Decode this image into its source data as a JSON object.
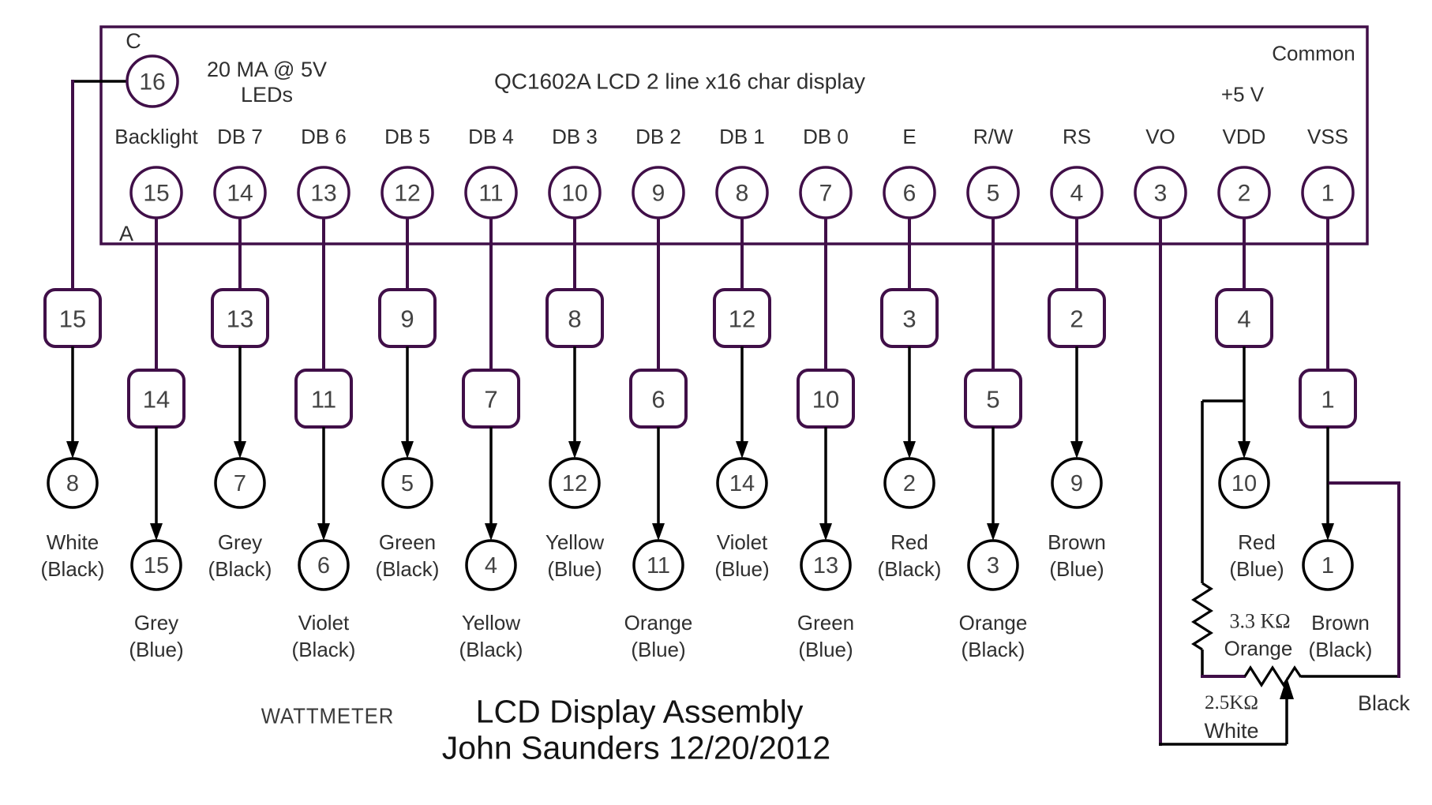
{
  "colors": {
    "wire_purple": "#400f48",
    "wire_black": "#000000",
    "number_text": "#434343",
    "label_text": "#2f2f2f"
  },
  "lcd": {
    "part_title": "QC1602A LCD 2 line x16 char display",
    "common_label": "Common",
    "supply_label": "+5 V",
    "led_note_line1": "20 MA @ 5V",
    "led_note_line2": "LEDs",
    "cathode_label": "C",
    "anode_label": "A",
    "backlight_common_pin": "16"
  },
  "title_block": {
    "project": "WATTMETER",
    "assembly": "LCD Display Assembly",
    "author_date": "John Saunders 12/20/2012"
  },
  "contrast_network": {
    "resistor_value": "3.3 KΩ",
    "resistor_wire_color": "Orange",
    "pot_value": "2.5KΩ",
    "pot_wiper_wire_color": "White",
    "pot_end_wire_color": "Black"
  },
  "columns": [
    {
      "signal": "",
      "lcd_pin": "16",
      "connector_pin": "15",
      "connector_row": 1,
      "dest_pin": "8",
      "dest_row": 1,
      "wire_color": "White",
      "sleeve_color": "(Black)"
    },
    {
      "signal": "Backlight",
      "lcd_pin": "15",
      "connector_pin": "14",
      "connector_row": 2,
      "dest_pin": "15",
      "dest_row": 2,
      "wire_color": "Grey",
      "sleeve_color": "(Blue)"
    },
    {
      "signal": "DB 7",
      "lcd_pin": "14",
      "connector_pin": "13",
      "connector_row": 1,
      "dest_pin": "7",
      "dest_row": 1,
      "wire_color": "Grey",
      "sleeve_color": "(Black)"
    },
    {
      "signal": "DB 6",
      "lcd_pin": "13",
      "connector_pin": "11",
      "connector_row": 2,
      "dest_pin": "6",
      "dest_row": 2,
      "wire_color": "Violet",
      "sleeve_color": "(Black)"
    },
    {
      "signal": "DB 5",
      "lcd_pin": "12",
      "connector_pin": "9",
      "connector_row": 1,
      "dest_pin": "5",
      "dest_row": 1,
      "wire_color": "Green",
      "sleeve_color": "(Black)"
    },
    {
      "signal": "DB 4",
      "lcd_pin": "11",
      "connector_pin": "7",
      "connector_row": 2,
      "dest_pin": "4",
      "dest_row": 2,
      "wire_color": "Yellow",
      "sleeve_color": "(Black)"
    },
    {
      "signal": "DB 3",
      "lcd_pin": "10",
      "connector_pin": "8",
      "connector_row": 1,
      "dest_pin": "12",
      "dest_row": 1,
      "wire_color": "Yellow",
      "sleeve_color": "(Blue)"
    },
    {
      "signal": "DB 2",
      "lcd_pin": "9",
      "connector_pin": "6",
      "connector_row": 2,
      "dest_pin": "11",
      "dest_row": 2,
      "wire_color": "Orange",
      "sleeve_color": "(Blue)"
    },
    {
      "signal": "DB 1",
      "lcd_pin": "8",
      "connector_pin": "12",
      "connector_row": 1,
      "dest_pin": "14",
      "dest_row": 1,
      "wire_color": "Violet",
      "sleeve_color": "(Blue)"
    },
    {
      "signal": "DB 0",
      "lcd_pin": "7",
      "connector_pin": "10",
      "connector_row": 2,
      "dest_pin": "13",
      "dest_row": 2,
      "wire_color": "Green",
      "sleeve_color": "(Blue)"
    },
    {
      "signal": "E",
      "lcd_pin": "6",
      "connector_pin": "3",
      "connector_row": 1,
      "dest_pin": "2",
      "dest_row": 1,
      "wire_color": "Red",
      "sleeve_color": "(Black)"
    },
    {
      "signal": "R/W",
      "lcd_pin": "5",
      "connector_pin": "5",
      "connector_row": 2,
      "dest_pin": "3",
      "dest_row": 2,
      "wire_color": "Orange",
      "sleeve_color": "(Black)"
    },
    {
      "signal": "RS",
      "lcd_pin": "4",
      "connector_pin": "2",
      "connector_row": 1,
      "dest_pin": "9",
      "dest_row": 1,
      "wire_color": "Brown",
      "sleeve_color": "(Blue)"
    },
    {
      "signal": "VO",
      "lcd_pin": "3",
      "connector_pin": null,
      "connector_row": null,
      "dest_pin": null,
      "dest_row": null,
      "wire_color": null,
      "sleeve_color": null
    },
    {
      "signal": "VDD",
      "lcd_pin": "2",
      "connector_pin": "4",
      "connector_row": 1,
      "dest_pin": "10",
      "dest_row": 1,
      "wire_color": "Red",
      "sleeve_color": "(Blue)"
    },
    {
      "signal": "VSS",
      "lcd_pin": "1",
      "connector_pin": "1",
      "connector_row": 2,
      "dest_pin": "1",
      "dest_row": 2,
      "wire_color": "Brown",
      "sleeve_color": "(Black)"
    }
  ]
}
